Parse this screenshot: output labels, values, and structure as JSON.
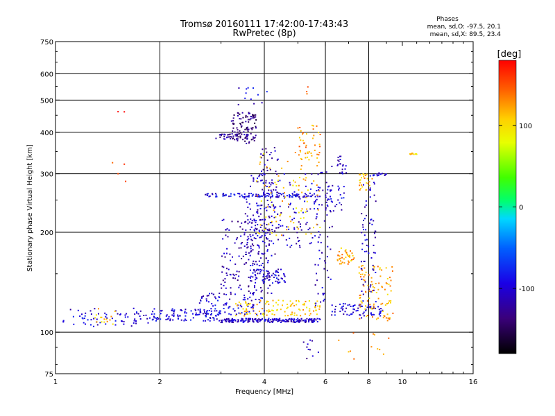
{
  "chart_data": {
    "type": "scatter",
    "title_line1": "Tromsø 20160111 17:42:00-17:43:43",
    "title_line2": "RwPretec (8p)",
    "xlabel": "Frequency [MHz]",
    "ylabel": "Stationary phase Virtual Height [km]",
    "x_scale": "log",
    "y_scale": "log",
    "xlim": [
      1,
      16
    ],
    "ylim": [
      75,
      750
    ],
    "x_ticks": [
      1,
      2,
      4,
      6,
      8,
      10,
      16
    ],
    "y_ticks": [
      75,
      100,
      200,
      300,
      400,
      500,
      600,
      750
    ],
    "x_grid": [
      2,
      4,
      6,
      8
    ],
    "y_grid": [
      100,
      200,
      300,
      400,
      500,
      600
    ],
    "grid": true,
    "info": {
      "title": "Phases",
      "line_o": "mean, sd,O: -97.5, 20.1",
      "line_x": "mean, sd,X:  89.5, 23.4"
    },
    "colorbar": {
      "label": "[deg]",
      "min": -180,
      "max": 180,
      "ticks": [
        -100,
        0,
        100
      ],
      "colormap": "rainbow"
    },
    "clusters": [
      {
        "x": [
          1.05,
          1.9
        ],
        "y": [
          104,
          118
        ],
        "phase": -100,
        "n": 70
      },
      {
        "x": [
          1.9,
          3.0
        ],
        "y": [
          108,
          118
        ],
        "phase": -95,
        "n": 110
      },
      {
        "x": [
          3.0,
          5.8
        ],
        "y": [
          107,
          110
        ],
        "phase": -105,
        "n": 200
      },
      {
        "x": [
          2.6,
          4.0
        ],
        "y": [
          113,
          132
        ],
        "phase": -100,
        "n": 90
      },
      {
        "x": [
          3.3,
          5.8
        ],
        "y": [
          112,
          125
        ],
        "phase": 110,
        "n": 110
      },
      {
        "x": [
          3.0,
          4.3
        ],
        "y": [
          130,
          220
        ],
        "phase": -115,
        "n": 160
      },
      {
        "x": [
          3.7,
          4.6
        ],
        "y": [
          140,
          155
        ],
        "phase": -100,
        "n": 60
      },
      {
        "x": [
          3.2,
          3.8
        ],
        "y": [
          370,
          460
        ],
        "phase": -135,
        "n": 90
      },
      {
        "x": [
          2.9,
          3.6
        ],
        "y": [
          380,
          395
        ],
        "phase": -125,
        "n": 50
      },
      {
        "x": [
          2.7,
          5.8
        ],
        "y": [
          255,
          262
        ],
        "phase": -95,
        "n": 110
      },
      {
        "x": [
          3.5,
          5.8
        ],
        "y": [
          180,
          300
        ],
        "phase": -105,
        "n": 140
      },
      {
        "x": [
          3.8,
          4.4
        ],
        "y": [
          220,
          360
        ],
        "phase": -115,
        "n": 70
      },
      {
        "x": [
          3.8,
          5.8
        ],
        "y": [
          195,
          350
        ],
        "phase": 110,
        "n": 90
      },
      {
        "x": [
          3.5,
          4.2
        ],
        "y": [
          145,
          230
        ],
        "phase": -110,
        "n": 60
      },
      {
        "x": [
          5.6,
          6.3
        ],
        "y": [
          120,
          320
        ],
        "phase": -105,
        "n": 60
      },
      {
        "x": [
          6.2,
          8.8
        ],
        "y": [
          112,
          122
        ],
        "phase": -100,
        "n": 70
      },
      {
        "x": [
          7.5,
          9.4
        ],
        "y": [
          108,
          160
        ],
        "phase": 120,
        "n": 100
      },
      {
        "x": [
          6.5,
          7.3
        ],
        "y": [
          160,
          180
        ],
        "phase": 120,
        "n": 40
      },
      {
        "x": [
          6.0,
          6.8
        ],
        "y": [
          230,
          280
        ],
        "phase": -100,
        "n": 30
      },
      {
        "x": [
          7.6,
          8.4
        ],
        "y": [
          110,
          300
        ],
        "phase": -105,
        "n": 70
      },
      {
        "x": [
          5.0,
          5.8
        ],
        "y": [
          320,
          420
        ],
        "phase": 125,
        "n": 40
      },
      {
        "x": [
          6.5,
          6.9
        ],
        "y": [
          300,
          340
        ],
        "phase": -110,
        "n": 20
      },
      {
        "x": [
          7.5,
          8.2
        ],
        "y": [
          265,
          300
        ],
        "phase": 120,
        "n": 25
      },
      {
        "x": [
          8.0,
          9.0
        ],
        "y": [
          295,
          302
        ],
        "phase": -100,
        "n": 15
      },
      {
        "x": [
          10.3,
          11.0
        ],
        "y": [
          343,
          346
        ],
        "phase": 110,
        "n": 10
      },
      {
        "x": [
          1.3,
          1.5
        ],
        "y": [
          105,
          118
        ],
        "phase": 110,
        "n": 15
      },
      {
        "x": [
          1.45,
          1.6
        ],
        "y": [
          250,
          480
        ],
        "phase": 160,
        "n": 6
      },
      {
        "x": [
          3.3,
          4.1
        ],
        "y": [
          470,
          550
        ],
        "phase": -100,
        "n": 12
      },
      {
        "x": [
          5.2,
          5.4
        ],
        "y": [
          520,
          560
        ],
        "phase": 150,
        "n": 3
      },
      {
        "x": [
          5.0,
          5.8
        ],
        "y": [
          82,
          95
        ],
        "phase": -110,
        "n": 10
      },
      {
        "x": [
          6.5,
          9.4
        ],
        "y": [
          80,
          100
        ],
        "phase": 120,
        "n": 12
      }
    ]
  }
}
